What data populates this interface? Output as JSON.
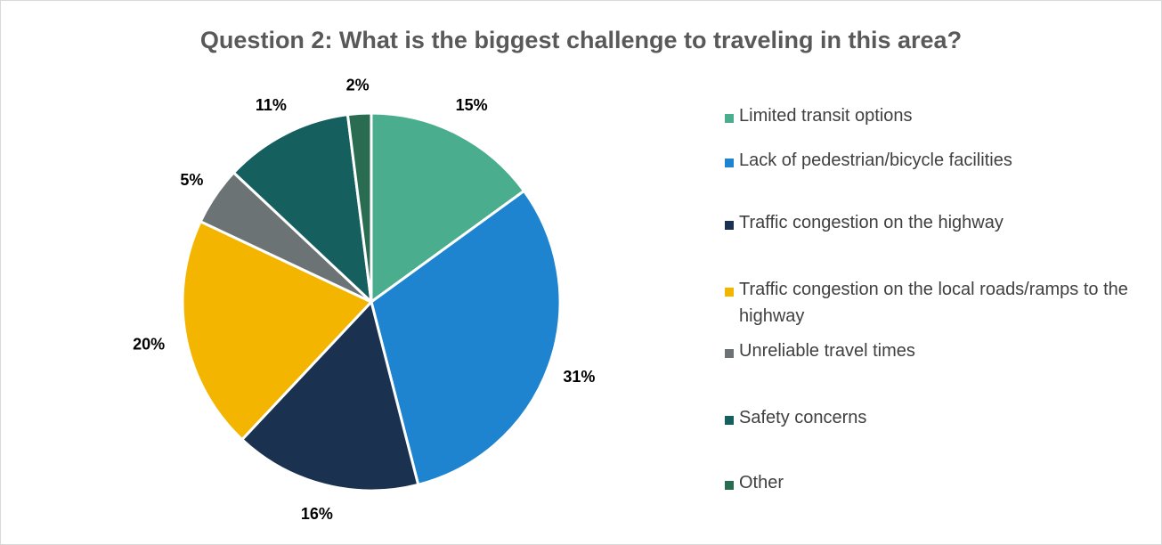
{
  "chart_data": {
    "type": "pie",
    "title": "Question 2: What is the biggest challenge to traveling in this area?",
    "slices": [
      {
        "label": "Limited transit options",
        "value": 15,
        "display": "15%",
        "color": "#4aad8e"
      },
      {
        "label": "Lack of pedestrian/bicycle facilities",
        "value": 31,
        "display": "31%",
        "color": "#1e84cf"
      },
      {
        "label": "Traffic congestion on the highway",
        "value": 16,
        "display": "16%",
        "color": "#1b3150"
      },
      {
        "label": "Traffic congestion on the local roads/ramps to the highway",
        "value": 20,
        "display": "20%",
        "color": "#f4b500"
      },
      {
        "label": "Unreliable travel times",
        "value": 5,
        "display": "5%",
        "color": "#6c7374"
      },
      {
        "label": "Safety concerns",
        "value": 11,
        "display": "11%",
        "color": "#165f5f"
      },
      {
        "label": "Other",
        "value": 2,
        "display": "2%",
        "color": "#2a6c52"
      }
    ],
    "legend_position": "right"
  }
}
